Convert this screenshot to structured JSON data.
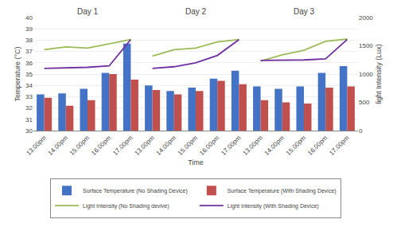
{
  "chart_data": [
    {
      "type": "bar",
      "title": "Day 1",
      "categories": [
        "13.00pm",
        "14.00pm",
        "15.00pm",
        "16.00pm",
        "17.00pm"
      ],
      "series": [
        {
          "name": "Surface Temperature (No Shading Device)",
          "color": "#4472C4",
          "values": [
            33.2,
            33.3,
            33.7,
            35.1,
            37.7
          ]
        },
        {
          "name": "Surface Temperature (With Shading Device)",
          "color": "#C0504D",
          "values": [
            32.9,
            32.2,
            32.7,
            35.0,
            34.5
          ]
        },
        {
          "name": "Light Intensity (No Shading devive)",
          "color": "#9BBB59",
          "type": "line",
          "axis": "y2",
          "values": [
            1430,
            1480,
            1460,
            1530,
            1610
          ]
        },
        {
          "name": "Light Intensity (With Shading Device)",
          "color": "#7030A0",
          "type": "line",
          "axis": "y2",
          "values": [
            1100,
            1110,
            1120,
            1145,
            1610
          ]
        }
      ],
      "ylabel": "Temperature (°C)",
      "ylim": [
        30,
        40
      ],
      "yticks": [
        30,
        31,
        32,
        33,
        34,
        35,
        36,
        37,
        38,
        39,
        40
      ],
      "y2lim": [
        0,
        2000
      ],
      "grid": true,
      "legend": "bottom"
    },
    {
      "type": "bar",
      "title": "Day 2",
      "categories": [
        "13.00pm",
        "14.00pm",
        "15.00pm",
        "16.00pm",
        "17.00pm"
      ],
      "series": [
        {
          "name": "Surface Temperature (No Shading Device)",
          "color": "#4472C4",
          "values": [
            34.0,
            33.5,
            33.8,
            34.6,
            35.3
          ]
        },
        {
          "name": "Surface Temperature (With Shading Device)",
          "color": "#C0504D",
          "values": [
            33.6,
            33.2,
            33.5,
            34.4,
            34.1
          ]
        },
        {
          "name": "Light Intensity (No Shading devive)",
          "color": "#9BBB59",
          "type": "line",
          "axis": "y2",
          "values": [
            1320,
            1430,
            1460,
            1570,
            1610
          ]
        },
        {
          "name": "Light Intensity (With Shading Device)",
          "color": "#7030A0",
          "type": "line",
          "axis": "y2",
          "values": [
            1100,
            1130,
            1200,
            1330,
            1610
          ]
        }
      ],
      "xlabel": "Time",
      "ylim": [
        30,
        40
      ],
      "yticks": [
        30,
        31,
        32,
        33,
        34,
        35,
        36,
        37,
        38,
        39,
        40
      ],
      "y2lim": [
        0,
        2000
      ],
      "grid": true,
      "tick_labels": "x"
    },
    {
      "type": "bar",
      "title": "Day 3",
      "categories": [
        "13.00pm",
        "14.00pm",
        "15.00pm",
        "16.00pm",
        "17.00pm"
      ],
      "series": [
        {
          "name": "Surface Temperature (No Shading Device)",
          "color": "#4472C4",
          "values": [
            33.9,
            33.7,
            33.9,
            35.1,
            35.7
          ]
        },
        {
          "name": "Surface Temperature (With Shading Device)",
          "color": "#C0504D",
          "values": [
            32.7,
            32.5,
            32.4,
            33.8,
            33.9
          ]
        },
        {
          "name": "Light Intensity (No Shading devive)",
          "color": "#9BBB59",
          "type": "line",
          "axis": "y2",
          "values": [
            1230,
            1340,
            1420,
            1580,
            1620
          ]
        },
        {
          "name": "Light Intensity (With Shading Device)",
          "color": "#7030A0",
          "type": "line",
          "axis": "y2",
          "values": [
            1240,
            1245,
            1250,
            1270,
            1610
          ]
        }
      ],
      "y2label": "light Intensity (Lux)",
      "ylim": [
        30,
        40
      ],
      "yticks": [
        30,
        31,
        32,
        33,
        34,
        35,
        36,
        37,
        38,
        39,
        40
      ],
      "y2lim": [
        0,
        2000
      ],
      "y2ticks": [
        0,
        500,
        1000,
        1500,
        2000
      ],
      "grid": true,
      "tick_labels": "x"
    }
  ]
}
